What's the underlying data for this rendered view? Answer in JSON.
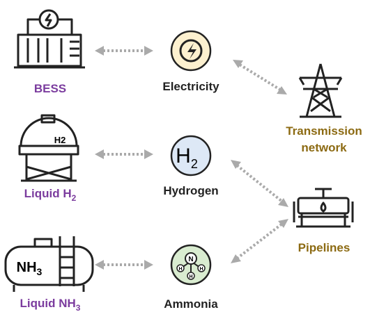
{
  "storage": [
    {
      "label": "BESS"
    },
    {
      "label": "Liquid H",
      "label_sub": "2",
      "icon_text": "H2"
    },
    {
      "label": "Liquid NH",
      "label_sub": "3",
      "icon_text": "NH",
      "icon_sub": "3"
    }
  ],
  "carriers": [
    {
      "label": "Electricity"
    },
    {
      "label": "Hydrogen",
      "icon_text": "H",
      "icon_sub": "2"
    },
    {
      "label": "Ammonia",
      "icon_atoms": [
        "N",
        "H",
        "H",
        "H"
      ]
    }
  ],
  "infrastructure": [
    {
      "label_lines": [
        "Transmission",
        "network"
      ]
    },
    {
      "label": "Pipelines"
    }
  ]
}
